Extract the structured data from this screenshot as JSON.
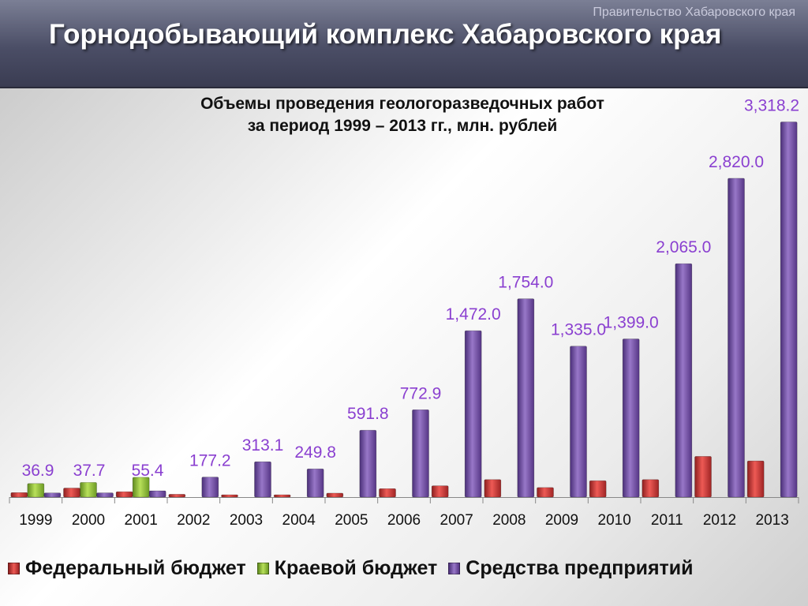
{
  "header": {
    "organization": "Правительство Хабаровского края",
    "title": "Горнодобывающий комплекс Хабаровского края"
  },
  "colors": {
    "federal": "#d93a3a",
    "regional": "#94c43c",
    "enterprises": "#7a55a8",
    "value_label": "#8a3fd0"
  },
  "chart_data": {
    "type": "bar",
    "title": [
      "Объемы проведения геологоразведочных работ",
      "за период 1999 – 2013 гг., млн. рублей"
    ],
    "categories": [
      "1999",
      "2000",
      "2001",
      "2002",
      "2003",
      "2004",
      "2005",
      "2006",
      "2007",
      "2008",
      "2009",
      "2010",
      "2011",
      "2012",
      "2013"
    ],
    "ylim": [
      0,
      3350
    ],
    "series": [
      {
        "name": "Федеральный бюджет",
        "values": [
          40,
          80,
          48,
          25,
          10,
          6,
          35,
          75,
          100,
          155,
          85,
          145,
          155,
          360,
          320
        ]
      },
      {
        "name": "Краевой бюджет",
        "values": [
          120,
          130,
          175,
          0,
          0,
          0,
          0,
          0,
          0,
          0,
          0,
          0,
          0,
          0,
          0
        ]
      },
      {
        "name": "Средства предприятий",
        "values": [
          36.9,
          37.7,
          55.4,
          177.2,
          313.1,
          249.8,
          591.8,
          772.9,
          1472.0,
          1754.0,
          1335.0,
          1399.0,
          2065.0,
          2820.0,
          3318.2
        ]
      }
    ],
    "data_labels": [
      "36.9",
      "37.7",
      "55.4",
      "177.2",
      "313.1",
      "249.8",
      "591.8",
      "772.9",
      "1,472.0",
      "1,754.0",
      "1,335.0",
      "1,399.0",
      "2,065.0",
      "2,820.0",
      "3,318.2"
    ]
  }
}
